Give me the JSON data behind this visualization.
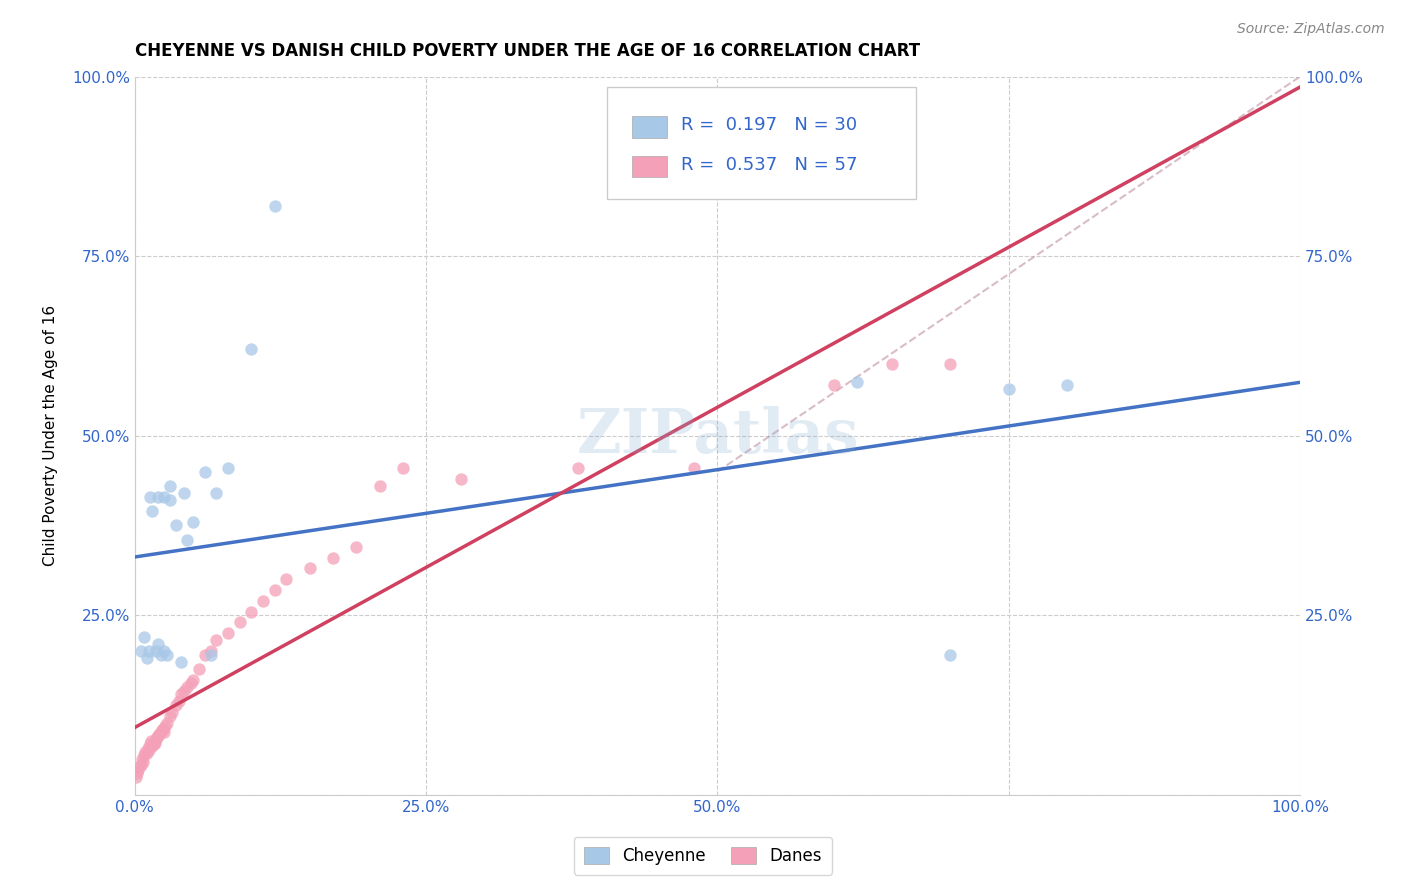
{
  "title": "CHEYENNE VS DANISH CHILD POVERTY UNDER THE AGE OF 16 CORRELATION CHART",
  "source": "Source: ZipAtlas.com",
  "ylabel": "Child Poverty Under the Age of 16",
  "cheyenne_R": 0.197,
  "cheyenne_N": 30,
  "danes_R": 0.537,
  "danes_N": 57,
  "cheyenne_color": "#a8c8e8",
  "danes_color": "#f4a0b8",
  "cheyenne_line_color": "#4472c4",
  "danes_line_color": "#d04060",
  "dashed_line_color": "#c8a0b0",
  "watermark_color": "#8ab0d0",
  "cheyenne_x": [
    0.005,
    0.008,
    0.01,
    0.012,
    0.013,
    0.015,
    0.018,
    0.02,
    0.022,
    0.025,
    0.028,
    0.03,
    0.035,
    0.04,
    0.042,
    0.045,
    0.05,
    0.06,
    0.065,
    0.07,
    0.08,
    0.1,
    0.12,
    0.02,
    0.025,
    0.03,
    0.62,
    0.7,
    0.75,
    0.8
  ],
  "cheyenne_y": [
    0.2,
    0.22,
    0.19,
    0.2,
    0.415,
    0.395,
    0.2,
    0.415,
    0.195,
    0.415,
    0.195,
    0.43,
    0.375,
    0.185,
    0.42,
    0.355,
    0.38,
    0.45,
    0.195,
    0.42,
    0.455,
    0.62,
    0.82,
    0.21,
    0.2,
    0.41,
    0.575,
    0.195,
    0.565,
    0.57
  ],
  "danes_x": [
    0.001,
    0.002,
    0.003,
    0.004,
    0.005,
    0.006,
    0.007,
    0.008,
    0.009,
    0.01,
    0.011,
    0.012,
    0.013,
    0.014,
    0.015,
    0.016,
    0.017,
    0.018,
    0.019,
    0.02,
    0.021,
    0.022,
    0.023,
    0.024,
    0.025,
    0.026,
    0.028,
    0.03,
    0.032,
    0.035,
    0.038,
    0.04,
    0.042,
    0.045,
    0.048,
    0.05,
    0.055,
    0.06,
    0.065,
    0.07,
    0.08,
    0.09,
    0.1,
    0.11,
    0.12,
    0.13,
    0.15,
    0.17,
    0.19,
    0.21,
    0.23,
    0.28,
    0.38,
    0.48,
    0.6,
    0.65,
    0.7
  ],
  "danes_y": [
    0.025,
    0.03,
    0.035,
    0.04,
    0.042,
    0.05,
    0.045,
    0.055,
    0.06,
    0.058,
    0.065,
    0.062,
    0.07,
    0.075,
    0.068,
    0.07,
    0.072,
    0.078,
    0.08,
    0.082,
    0.085,
    0.088,
    0.09,
    0.092,
    0.088,
    0.095,
    0.1,
    0.11,
    0.115,
    0.125,
    0.13,
    0.14,
    0.145,
    0.15,
    0.155,
    0.16,
    0.175,
    0.195,
    0.2,
    0.215,
    0.225,
    0.24,
    0.255,
    0.27,
    0.285,
    0.3,
    0.315,
    0.33,
    0.345,
    0.43,
    0.455,
    0.44,
    0.455,
    0.455,
    0.57,
    0.6,
    0.6
  ],
  "xlim": [
    0.0,
    1.0
  ],
  "ylim": [
    0.0,
    1.0
  ],
  "xticks": [
    0.0,
    0.25,
    0.5,
    0.75,
    1.0
  ],
  "xtick_labels": [
    "0.0%",
    "25.0%",
    "50.0%",
    "",
    "100.0%"
  ],
  "ytick_labels_left": [
    "",
    "25.0%",
    "50.0%",
    "75.0%",
    "100.0%"
  ],
  "ytick_labels_right": [
    "",
    "25.0%",
    "50.0%",
    "75.0%",
    "100.0%"
  ],
  "title_fontsize": 12,
  "axis_label_fontsize": 11,
  "tick_fontsize": 11,
  "legend_fontsize": 13,
  "source_fontsize": 10,
  "marker_size": 80
}
